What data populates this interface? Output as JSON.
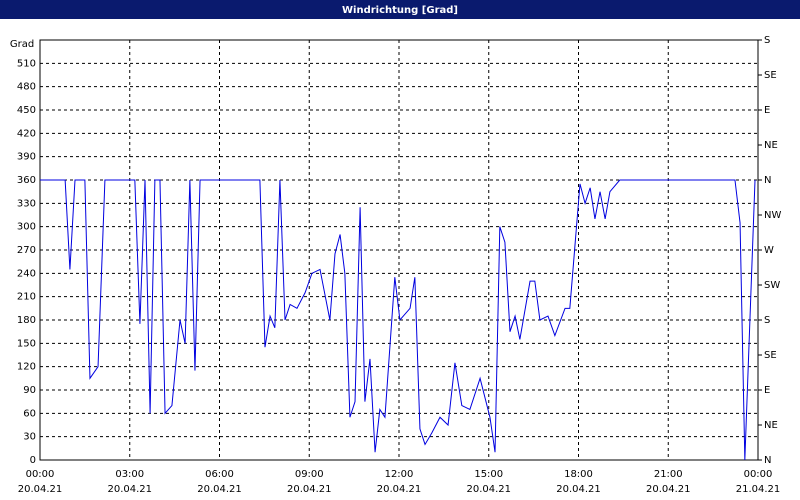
{
  "chart_data": {
    "type": "line",
    "title": "Windrichtung [Grad]",
    "y_label": "Grad",
    "x": [
      0,
      0.84,
      1.0,
      1.17,
      1.5,
      1.67,
      1.94,
      2.17,
      3.17,
      3.34,
      3.51,
      3.68,
      3.84,
      4.01,
      4.18,
      4.41,
      4.68,
      4.85,
      5.01,
      5.18,
      5.35,
      7.35,
      7.52,
      7.69,
      7.85,
      8.02,
      8.19,
      8.36,
      8.59,
      8.86,
      9.09,
      9.36,
      9.69,
      9.86,
      10.03,
      10.19,
      10.36,
      10.53,
      10.7,
      10.86,
      11.03,
      11.2,
      11.36,
      11.53,
      11.86,
      12.03,
      12.37,
      12.53,
      12.7,
      12.87,
      13.1,
      13.37,
      13.64,
      13.87,
      14.1,
      14.37,
      14.71,
      15.04,
      15.21,
      15.37,
      15.54,
      15.71,
      15.88,
      16.04,
      16.38,
      16.54,
      16.71,
      16.98,
      17.21,
      17.55,
      17.71,
      18.05,
      18.22,
      18.39,
      18.55,
      18.72,
      18.89,
      19.05,
      19.38,
      23.23,
      23.4,
      23.56,
      23.9
    ],
    "series": [
      {
        "name": "Windrichtung",
        "color": "#0000e0",
        "values": [
          360,
          360,
          245,
          360,
          360,
          105,
          120,
          360,
          360,
          175,
          360,
          60,
          360,
          360,
          60,
          70,
          180,
          150,
          360,
          115,
          360,
          360,
          145,
          185,
          170,
          360,
          180,
          200,
          195,
          215,
          240,
          245,
          180,
          265,
          290,
          240,
          55,
          75,
          325,
          75,
          130,
          10,
          65,
          55,
          235,
          180,
          195,
          235,
          40,
          20,
          35,
          55,
          45,
          125,
          70,
          65,
          105,
          55,
          10,
          300,
          280,
          165,
          185,
          155,
          230,
          230,
          180,
          185,
          160,
          195,
          195,
          355,
          330,
          350,
          310,
          345,
          310,
          345,
          360,
          360,
          305,
          0,
          360
        ]
      }
    ],
    "xlim": [
      0,
      24
    ],
    "xticks": [
      {
        "value": 0,
        "label": "00:00"
      },
      {
        "value": 3,
        "label": "03:00"
      },
      {
        "value": 6,
        "label": "06:00"
      },
      {
        "value": 9,
        "label": "09:00"
      },
      {
        "value": 12,
        "label": "12:00"
      },
      {
        "value": 15,
        "label": "15:00"
      },
      {
        "value": 18,
        "label": "18:00"
      },
      {
        "value": 21,
        "label": "21:00"
      },
      {
        "value": 24,
        "label": "00:00"
      }
    ],
    "xtick_dates": [
      "20.04.21",
      "20.04.21",
      "20.04.21",
      "20.04.21",
      "20.04.21",
      "20.04.21",
      "20.04.21",
      "20.04.21",
      "21.04.21"
    ],
    "ylim": [
      0,
      540
    ],
    "yticks": [
      0,
      30,
      60,
      90,
      120,
      150,
      180,
      210,
      240,
      270,
      300,
      330,
      360,
      390,
      420,
      450,
      480,
      510
    ],
    "y2lim": [
      0,
      540
    ],
    "y2ticks": [
      {
        "value": 0,
        "label": "N"
      },
      {
        "value": 45,
        "label": "NE"
      },
      {
        "value": 90,
        "label": "E"
      },
      {
        "value": 135,
        "label": "SE"
      },
      {
        "value": 180,
        "label": "S"
      },
      {
        "value": 225,
        "label": "SW"
      },
      {
        "value": 270,
        "label": "W"
      },
      {
        "value": 315,
        "label": "NW"
      },
      {
        "value": 360,
        "label": "N"
      },
      {
        "value": 405,
        "label": "NE"
      },
      {
        "value": 450,
        "label": "E"
      },
      {
        "value": 495,
        "label": "SE"
      },
      {
        "value": 540,
        "label": "S"
      }
    ],
    "grid": true
  }
}
